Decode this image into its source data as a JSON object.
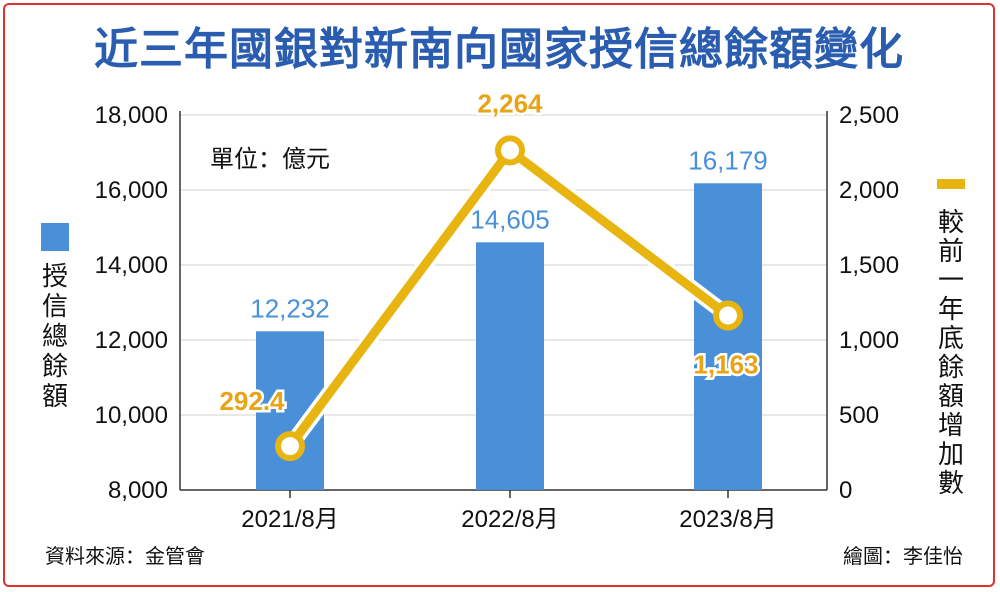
{
  "chart_data": {
    "type": "bar",
    "title": "近三年國銀對新南向國家授信總餘額變化",
    "unit_label": "單位：億元",
    "categories": [
      "2021/8月",
      "2022/8月",
      "2023/8月"
    ],
    "series": [
      {
        "name": "授信總餘額",
        "type": "bar",
        "axis": "left",
        "color": "#4a90d9",
        "values": [
          12232,
          14605,
          16179
        ],
        "labels": [
          "12,232",
          "14,605",
          "16,179"
        ]
      },
      {
        "name": "較前一年底餘額增加數",
        "type": "line",
        "axis": "right",
        "color": "#e8b40f",
        "values": [
          292.4,
          2264,
          1163
        ],
        "labels": [
          "292.4",
          "2,264",
          "1,163"
        ]
      }
    ],
    "y_left": {
      "range": [
        8000,
        18000
      ],
      "ticks": [
        8000,
        10000,
        12000,
        14000,
        16000,
        18000
      ],
      "tick_labels": [
        "8,000",
        "10,000",
        "12,000",
        "14,000",
        "16,000",
        "18,000"
      ],
      "label": "授信總餘額"
    },
    "y_right": {
      "range": [
        0,
        2500
      ],
      "ticks": [
        0,
        500,
        1000,
        1500,
        2000,
        2500
      ],
      "tick_labels": [
        "0",
        "500",
        "1,000",
        "1,500",
        "2,000",
        "2,500"
      ],
      "label": "較前一年底餘額增加數"
    },
    "grid": "horizontal"
  },
  "footer": {
    "source": "資料來源：金管會",
    "credit": "繪圖：李佳怡"
  }
}
